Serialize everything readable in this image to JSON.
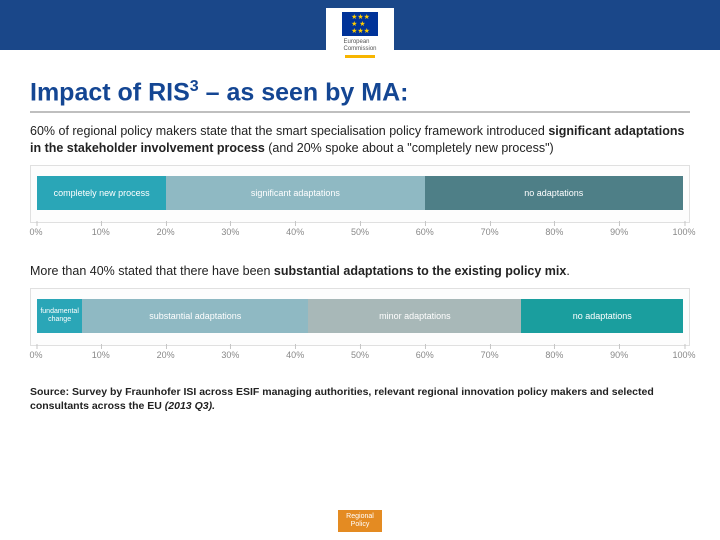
{
  "header": {
    "logo_org": "European",
    "logo_org2": "Commission"
  },
  "title_a": "Impact of RIS",
  "title_sup": "3",
  "title_b": " – as seen by MA:",
  "para1_a": "60% of regional policy makers state that the smart specialisation policy framework introduced ",
  "para1_b": "significant adaptations in the stakeholder involvement process",
  "para1_c": " (and 20% spoke about a \"completely new process\")",
  "chart1": {
    "type": "stacked-bar-100",
    "segments": [
      {
        "label": "completely new process",
        "value": 20,
        "color": "#2aa6b7"
      },
      {
        "label": "significant adaptations",
        "value": 40,
        "color": "#8fb9c3"
      },
      {
        "label": "no adaptations",
        "value": 40,
        "color": "#4e7f87"
      }
    ],
    "ticks": [
      "0%",
      "10%",
      "20%",
      "30%",
      "40%",
      "50%",
      "60%",
      "70%",
      "80%",
      "90%",
      "100%"
    ],
    "seg_fontsize": 9,
    "tick_color": "#888888",
    "bg": "#fdfdfd",
    "border": "#e0e0e0"
  },
  "para2_a": "More than 40% stated that there have been ",
  "para2_b": "substantial adaptations to the existing policy mix",
  "para2_c": ".",
  "chart2": {
    "type": "stacked-bar-100",
    "segments": [
      {
        "label": "fundamental change",
        "value": 7,
        "color": "#2aa6b7"
      },
      {
        "label": "substantial adaptations",
        "value": 35,
        "color": "#8fb9c3"
      },
      {
        "label": "minor adaptations",
        "value": 33,
        "color": "#a8b8b8"
      },
      {
        "label": "no adaptations",
        "value": 25,
        "color": "#1a9e9e"
      }
    ],
    "ticks": [
      "0%",
      "10%",
      "20%",
      "30%",
      "40%",
      "50%",
      "60%",
      "70%",
      "80%",
      "90%",
      "100%"
    ],
    "seg_fontsize": 9,
    "tick_color": "#888888",
    "bg": "#fdfdfd",
    "border": "#e0e0e0"
  },
  "source_a": "Source: Survey by Fraunhofer ISI across ESIF managing authorities, relevant regional innovation policy makers and selected consultants across the EU ",
  "source_b": "(2013 Q3).",
  "footer": {
    "line1": "Regional",
    "line2": "Policy"
  }
}
